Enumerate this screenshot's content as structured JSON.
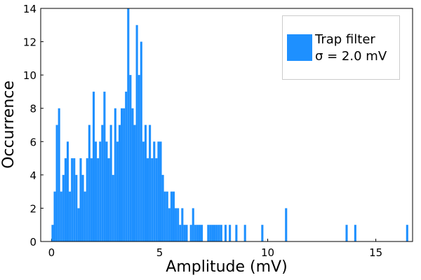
{
  "chart_data": {
    "type": "histogram",
    "x_label": "Amplitude (mV)",
    "y_label": "Occurrence",
    "series": [
      {
        "name": "Trap filter\nσ = 2.0 mV",
        "color": "#1e90ff",
        "bins": [
          0,
          0.1,
          0.2,
          0.3,
          0.4,
          0.5,
          0.6,
          0.7,
          0.8,
          0.9,
          1,
          1.1,
          1.2,
          1.3,
          1.4,
          1.5,
          1.6,
          1.7,
          1.8,
          1.9,
          2,
          2.1,
          2.2,
          2.3,
          2.4,
          2.5,
          2.6,
          2.7,
          2.8,
          2.9,
          3,
          3.1,
          3.2,
          3.3,
          3.4,
          3.5,
          3.6,
          3.7,
          3.8,
          3.9,
          4,
          4.1,
          4.2,
          4.3,
          4.4,
          4.5,
          4.6,
          4.7,
          4.8,
          4.9,
          5,
          5.1,
          5.2,
          5.3,
          5.4,
          5.5,
          5.6,
          5.7,
          5.8,
          5.9,
          6,
          6.1,
          6.2,
          6.3,
          6.4,
          6.5,
          6.6,
          6.7,
          6.8,
          6.9,
          7,
          7.1,
          7.2,
          7.3,
          7.4,
          7.5,
          7.6,
          7.7,
          7.8,
          7.9,
          8,
          8.1,
          8.2,
          8.3,
          8.4,
          8.5,
          8.6,
          8.7,
          8.8,
          8.9,
          9,
          9.1,
          9.2,
          9.3,
          9.4,
          9.5,
          9.6,
          9.7,
          9.8,
          9.9,
          10,
          10.1,
          10.2,
          10.3,
          10.4,
          10.5,
          10.6,
          10.7,
          10.8,
          10.9,
          11,
          11.1,
          11.2,
          11.3,
          11.4,
          11.5,
          11.6,
          11.7,
          11.8,
          11.9,
          12,
          12.1,
          12.2,
          12.3,
          12.4,
          12.5,
          12.6,
          12.7,
          12.8,
          12.9,
          13,
          13.1,
          13.2,
          13.3,
          13.4,
          13.5,
          13.6,
          13.7,
          13.8,
          13.9,
          14,
          14.1,
          14.2,
          14.3,
          14.4,
          14.5,
          14.6,
          14.7,
          14.8,
          14.9,
          15,
          15.1,
          15.2,
          15.3,
          15.4,
          15.5,
          15.6,
          15.7,
          15.8,
          15.9,
          16,
          16.1,
          16.2,
          16.3,
          16.4,
          16.5
        ],
        "values": [
          1,
          3,
          7,
          8,
          3,
          4,
          5,
          6,
          3,
          5,
          5,
          4,
          2,
          5,
          4,
          3,
          5,
          7,
          5,
          9,
          6,
          5,
          6,
          7,
          9,
          6,
          5,
          7,
          4,
          8,
          6,
          7,
          8,
          8,
          9,
          14,
          10,
          8,
          7,
          13,
          10,
          12,
          6,
          7,
          5,
          7,
          5,
          6,
          5,
          6,
          6,
          4,
          3,
          3,
          2,
          3,
          3,
          2,
          2,
          1,
          2,
          1,
          1,
          0,
          1,
          2,
          1,
          1,
          1,
          1,
          0,
          0,
          1,
          1,
          1,
          1,
          1,
          1,
          1,
          0,
          1,
          0,
          1,
          0,
          0,
          1,
          0,
          0,
          0,
          1,
          0,
          0,
          0,
          0,
          0,
          0,
          0,
          1,
          0,
          0,
          0,
          0,
          0,
          0,
          0,
          0,
          0,
          0,
          2,
          0,
          0,
          0,
          0,
          0,
          0,
          0,
          0,
          0,
          0,
          0,
          0,
          0,
          0,
          0,
          0,
          0,
          0,
          0,
          0,
          0,
          0,
          0,
          0,
          0,
          0,
          0,
          1,
          0,
          0,
          0,
          1,
          0,
          0,
          0,
          0,
          0,
          0,
          0,
          0,
          0,
          0,
          0,
          0,
          0,
          0,
          0,
          0,
          0,
          0,
          0,
          0,
          0,
          0,
          0,
          1
        ]
      }
    ],
    "xlim": [
      -0.5,
      16.7
    ],
    "ylim": [
      0,
      14
    ],
    "xticks": [
      0,
      5,
      10,
      15
    ],
    "yticks": [
      0,
      2,
      4,
      6,
      8,
      10,
      12,
      14
    ],
    "grid": false,
    "legend": "top-right"
  }
}
